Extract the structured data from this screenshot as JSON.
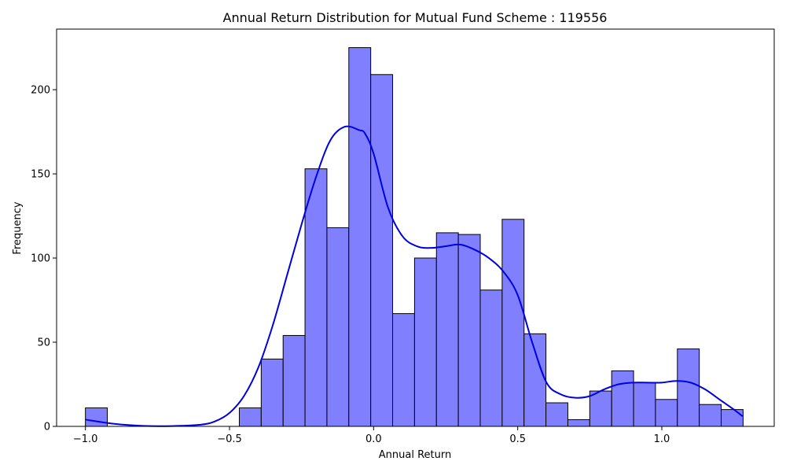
{
  "chart_data": {
    "type": "bar",
    "title": "Annual Return Distribution for Mutual Fund Scheme : 119556",
    "xlabel": "Annual Return",
    "ylabel": "Frequency",
    "xlim": [
      -1.1,
      1.39
    ],
    "ylim": [
      0,
      236
    ],
    "xticks": [
      -1.0,
      -0.5,
      0.0,
      0.5,
      1.0
    ],
    "xtick_labels": [
      "−1.0",
      "−0.5",
      "0.0",
      "0.5",
      "1.0"
    ],
    "yticks": [
      0,
      50,
      100,
      150,
      200
    ],
    "ytick_labels": [
      "0",
      "50",
      "100",
      "150",
      "200"
    ],
    "bar_color": "#8080ff",
    "kde_color": "#0000e0",
    "bins": [
      {
        "x0": -1.0,
        "x1": -0.924,
        "count": 11
      },
      {
        "x0": -0.466,
        "x1": -0.39,
        "count": 11
      },
      {
        "x0": -0.39,
        "x1": -0.314,
        "count": 40
      },
      {
        "x0": -0.314,
        "x1": -0.238,
        "count": 54
      },
      {
        "x0": -0.238,
        "x1": -0.162,
        "count": 153
      },
      {
        "x0": -0.162,
        "x1": -0.086,
        "count": 118
      },
      {
        "x0": -0.086,
        "x1": -0.01,
        "count": 225
      },
      {
        "x0": -0.01,
        "x1": 0.066,
        "count": 209
      },
      {
        "x0": 0.066,
        "x1": 0.142,
        "count": 67
      },
      {
        "x0": 0.142,
        "x1": 0.218,
        "count": 100
      },
      {
        "x0": 0.218,
        "x1": 0.294,
        "count": 115
      },
      {
        "x0": 0.294,
        "x1": 0.37,
        "count": 114
      },
      {
        "x0": 0.37,
        "x1": 0.446,
        "count": 81
      },
      {
        "x0": 0.446,
        "x1": 0.522,
        "count": 123
      },
      {
        "x0": 0.522,
        "x1": 0.598,
        "count": 55
      },
      {
        "x0": 0.598,
        "x1": 0.674,
        "count": 14
      },
      {
        "x0": 0.674,
        "x1": 0.75,
        "count": 4
      },
      {
        "x0": 0.75,
        "x1": 0.826,
        "count": 21
      },
      {
        "x0": 0.826,
        "x1": 0.902,
        "count": 33
      },
      {
        "x0": 0.902,
        "x1": 0.978,
        "count": 26
      },
      {
        "x0": 0.978,
        "x1": 1.054,
        "count": 16
      },
      {
        "x0": 1.054,
        "x1": 1.13,
        "count": 46
      },
      {
        "x0": 1.13,
        "x1": 1.206,
        "count": 13
      },
      {
        "x0": 1.206,
        "x1": 1.282,
        "count": 10
      }
    ],
    "kde": {
      "x": [
        -1.0,
        -0.9,
        -0.8,
        -0.7,
        -0.6,
        -0.55,
        -0.5,
        -0.45,
        -0.4,
        -0.35,
        -0.3,
        -0.25,
        -0.2,
        -0.15,
        -0.1,
        -0.05,
        -0.03,
        0.0,
        0.05,
        0.1,
        0.15,
        0.2,
        0.25,
        0.3,
        0.35,
        0.4,
        0.45,
        0.5,
        0.55,
        0.6,
        0.65,
        0.7,
        0.75,
        0.8,
        0.85,
        0.9,
        0.95,
        1.0,
        1.05,
        1.1,
        1.15,
        1.2,
        1.25,
        1.28
      ],
      "y": [
        4,
        1.5,
        0.3,
        0.2,
        1,
        3,
        8,
        18,
        35,
        60,
        90,
        120,
        148,
        170,
        178,
        176,
        174,
        162,
        130,
        113,
        107,
        106,
        107,
        108,
        105,
        100,
        92,
        78,
        50,
        26,
        19,
        17,
        18,
        22,
        25,
        26,
        26,
        26,
        27,
        26,
        22,
        16,
        10,
        6
      ]
    }
  }
}
